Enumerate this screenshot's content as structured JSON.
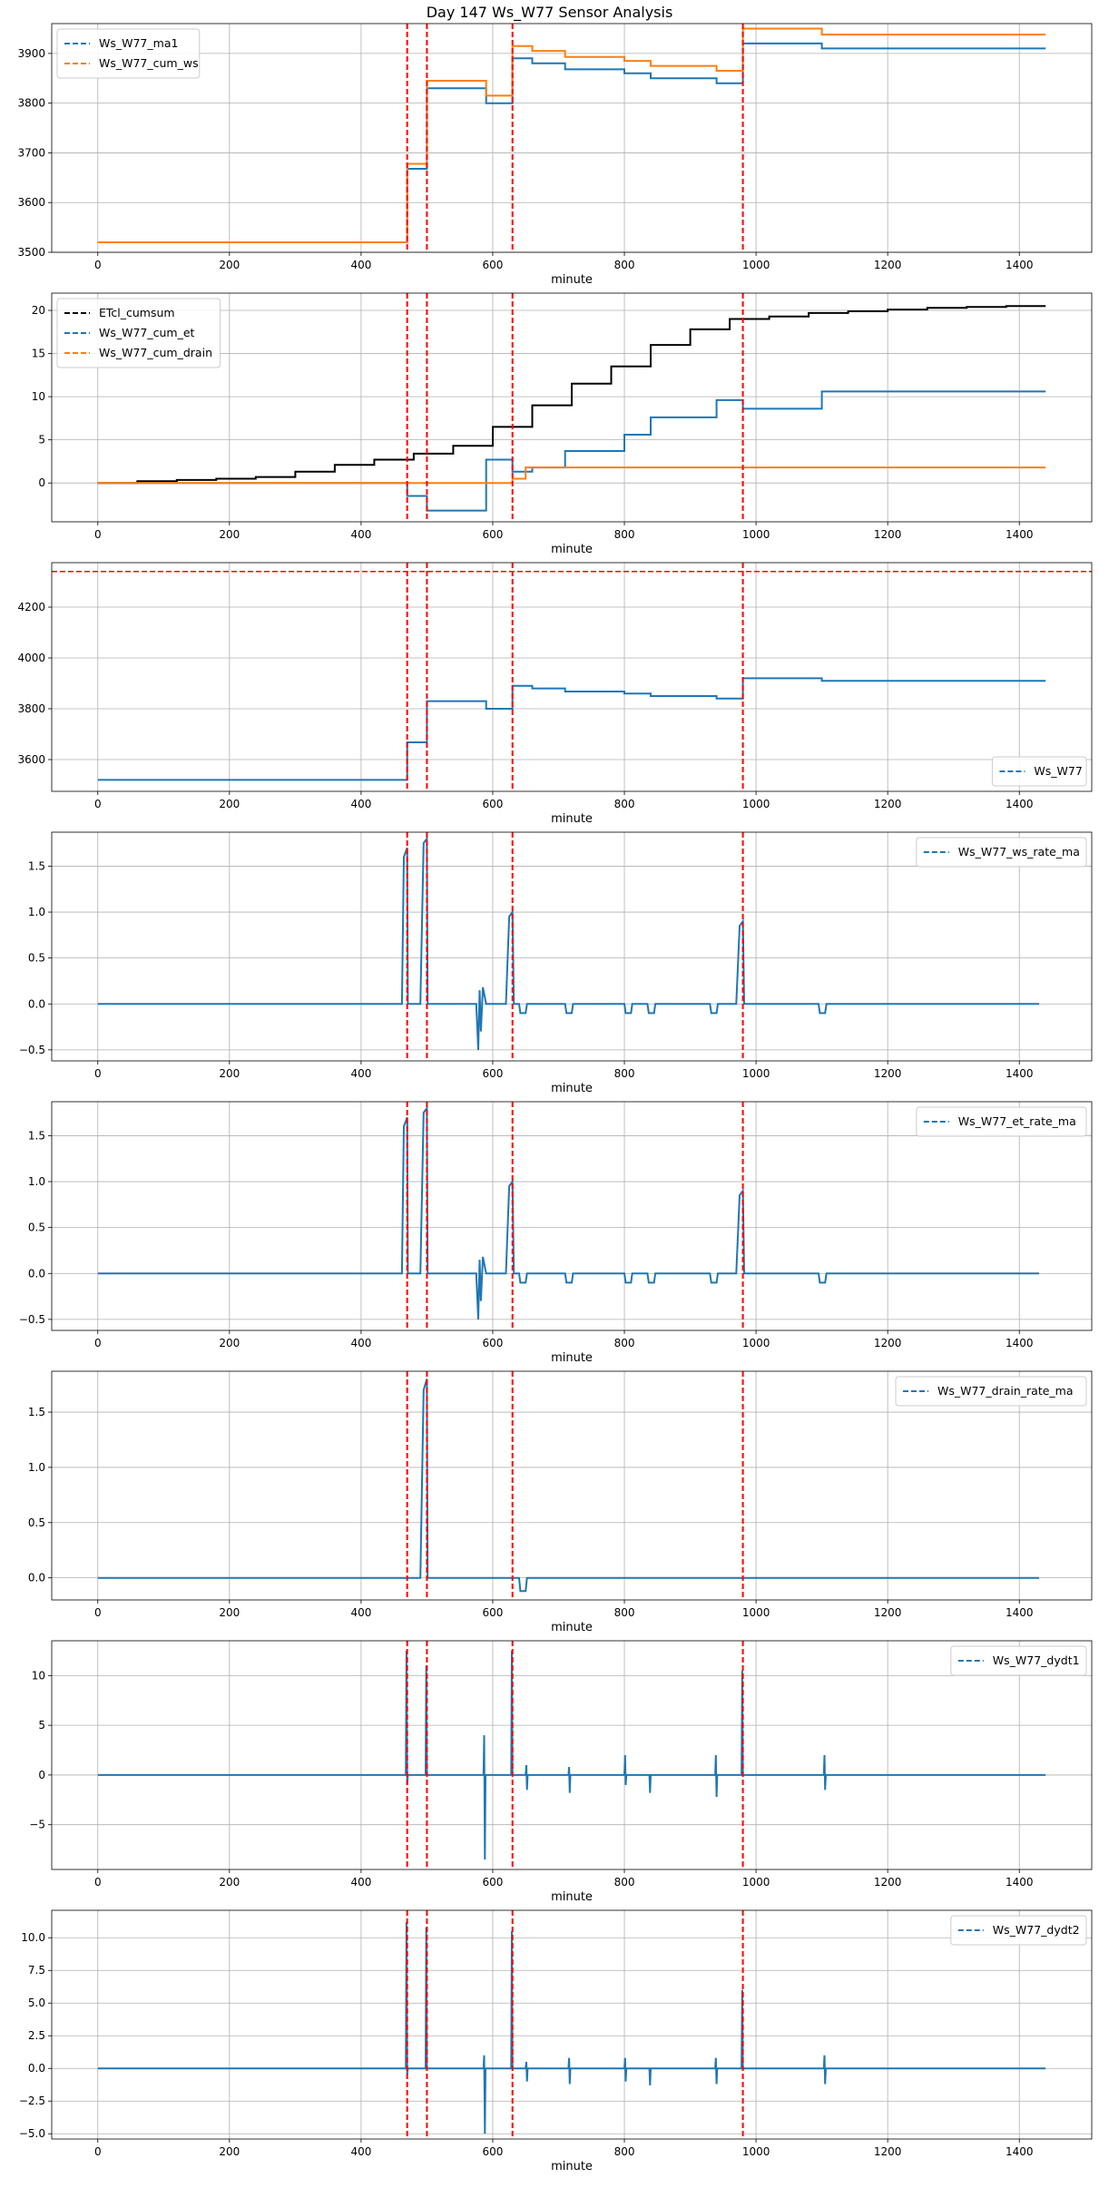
{
  "figure_title": "Day 147 Ws_W77 Sensor Analysis",
  "colors": {
    "blue": "#1f77b4",
    "orange": "#ff7f0e",
    "black": "#000000",
    "red": "#ff0000",
    "grid": "#b0b0b0"
  },
  "chart_data": [
    {
      "type": "line",
      "xlabel": "minute",
      "xlim": [
        -70,
        1510
      ],
      "ylim": [
        3500,
        3960
      ],
      "xticks": [
        0,
        200,
        400,
        600,
        800,
        1000,
        1200,
        1400
      ],
      "yticks": [
        3500,
        3600,
        3700,
        3800,
        3900
      ],
      "legend_loc": "upper-left",
      "event_lines": [
        470,
        500,
        630,
        980
      ],
      "event_hline": null,
      "series": [
        {
          "name": "Ws_W77_ma1",
          "color": "blue",
          "x": [
            0,
            470,
            470,
            500,
            500,
            590,
            590,
            630,
            630,
            660,
            660,
            710,
            710,
            800,
            800,
            840,
            840,
            940,
            940,
            980,
            980,
            1100,
            1100,
            1440
          ],
          "y": [
            3520,
            3520,
            3668,
            3668,
            3830,
            3830,
            3800,
            3800,
            3890,
            3890,
            3880,
            3880,
            3868,
            3868,
            3860,
            3860,
            3850,
            3850,
            3840,
            3840,
            3920,
            3920,
            3910,
            3910
          ]
        },
        {
          "name": "Ws_W77_cum_ws",
          "color": "orange",
          "x": [
            0,
            470,
            470,
            500,
            500,
            590,
            590,
            630,
            630,
            660,
            660,
            710,
            710,
            800,
            800,
            840,
            840,
            940,
            940,
            980,
            980,
            1100,
            1100,
            1440
          ],
          "y": [
            3520,
            3520,
            3678,
            3678,
            3845,
            3845,
            3815,
            3815,
            3915,
            3915,
            3905,
            3905,
            3893,
            3893,
            3885,
            3885,
            3875,
            3875,
            3865,
            3865,
            3950,
            3950,
            3938,
            3938
          ]
        }
      ]
    },
    {
      "type": "line",
      "xlabel": "minute",
      "xlim": [
        -70,
        1510
      ],
      "ylim": [
        -4.5,
        22
      ],
      "xticks": [
        0,
        200,
        400,
        600,
        800,
        1000,
        1200,
        1400
      ],
      "yticks": [
        0,
        5,
        10,
        15,
        20
      ],
      "legend_loc": "upper-left",
      "event_lines": [
        470,
        500,
        630,
        980
      ],
      "event_hline": null,
      "series": [
        {
          "name": "ETcl_cumsum",
          "color": "black",
          "x": [
            0,
            60,
            60,
            120,
            120,
            180,
            180,
            240,
            240,
            300,
            300,
            360,
            360,
            420,
            420,
            480,
            480,
            540,
            540,
            600,
            600,
            660,
            660,
            720,
            720,
            780,
            780,
            840,
            840,
            900,
            900,
            960,
            960,
            1020,
            1020,
            1080,
            1080,
            1140,
            1140,
            1200,
            1200,
            1260,
            1260,
            1320,
            1320,
            1380,
            1380,
            1440
          ],
          "y": [
            0,
            0,
            0.2,
            0.2,
            0.35,
            0.35,
            0.5,
            0.5,
            0.7,
            0.7,
            1.3,
            1.3,
            2.1,
            2.1,
            2.7,
            2.7,
            3.4,
            3.4,
            4.3,
            4.3,
            6.5,
            6.5,
            9.0,
            9.0,
            11.5,
            11.5,
            13.5,
            13.5,
            16.0,
            16.0,
            17.8,
            17.8,
            19.0,
            19.0,
            19.3,
            19.3,
            19.7,
            19.7,
            19.9,
            19.9,
            20.1,
            20.1,
            20.3,
            20.3,
            20.4,
            20.4,
            20.5,
            20.5
          ]
        },
        {
          "name": "Ws_W77_cum_et",
          "color": "blue",
          "x": [
            0,
            470,
            470,
            500,
            500,
            590,
            590,
            630,
            630,
            660,
            660,
            710,
            710,
            800,
            800,
            840,
            840,
            940,
            940,
            980,
            980,
            1100,
            1100,
            1440
          ],
          "y": [
            0,
            0,
            -1.5,
            -1.5,
            -3.2,
            -3.2,
            2.7,
            2.7,
            1.3,
            1.3,
            1.8,
            1.8,
            3.7,
            3.7,
            5.6,
            5.6,
            7.6,
            7.6,
            9.6,
            9.6,
            8.6,
            8.6,
            10.6,
            10.6
          ]
        },
        {
          "name": "Ws_W77_cum_drain",
          "color": "orange",
          "x": [
            0,
            630,
            630,
            650,
            650,
            1440
          ],
          "y": [
            0,
            0,
            0.5,
            0.5,
            1.8,
            1.8
          ]
        }
      ]
    },
    {
      "type": "line",
      "xlabel": "minute",
      "xlim": [
        -70,
        1510
      ],
      "ylim": [
        3475,
        4375
      ],
      "xticks": [
        0,
        200,
        400,
        600,
        800,
        1000,
        1200,
        1400
      ],
      "yticks": [
        3600,
        3800,
        4000,
        4200
      ],
      "legend_loc": "lower-right",
      "event_lines": [
        470,
        500,
        630,
        980
      ],
      "event_hline": 4340,
      "series": [
        {
          "name": "Ws_W77",
          "color": "blue",
          "x": [
            0,
            470,
            470,
            500,
            500,
            590,
            590,
            630,
            630,
            660,
            660,
            710,
            710,
            800,
            800,
            840,
            840,
            940,
            940,
            980,
            980,
            1100,
            1100,
            1440
          ],
          "y": [
            3520,
            3520,
            3668,
            3668,
            3830,
            3830,
            3800,
            3800,
            3890,
            3890,
            3880,
            3880,
            3868,
            3868,
            3860,
            3860,
            3850,
            3850,
            3840,
            3840,
            3920,
            3920,
            3910,
            3910
          ]
        }
      ]
    },
    {
      "type": "line",
      "xlabel": "minute",
      "xlim": [
        -70,
        1510
      ],
      "ylim": [
        -0.62,
        1.87
      ],
      "xticks": [
        0,
        200,
        400,
        600,
        800,
        1000,
        1200,
        1400
      ],
      "yticks": [
        -0.5,
        0.0,
        0.5,
        1.0,
        1.5
      ],
      "legend_loc": "upper-right",
      "event_lines": [
        470,
        500,
        630,
        980
      ],
      "event_hline": null,
      "series": [
        {
          "name": "Ws_W77_ws_rate_ma",
          "color": "blue",
          "x": [
            0,
            462,
            465,
            470,
            471,
            490,
            495,
            500,
            501,
            575,
            578,
            580,
            582,
            585,
            590,
            620,
            625,
            630,
            632,
            640,
            642,
            650,
            652,
            710,
            712,
            720,
            722,
            800,
            802,
            810,
            812,
            835,
            837,
            845,
            847,
            930,
            932,
            940,
            942,
            970,
            975,
            980,
            982,
            1095,
            1097,
            1105,
            1107,
            1430
          ],
          "y": [
            0,
            0,
            1.6,
            1.7,
            0,
            0,
            1.75,
            1.8,
            0,
            0,
            -0.5,
            0.15,
            -0.3,
            0.18,
            0,
            0,
            0.95,
            1.0,
            0,
            0,
            -0.1,
            -0.1,
            0,
            0,
            -0.1,
            -0.1,
            0,
            0,
            -0.1,
            -0.1,
            0,
            0,
            -0.1,
            -0.1,
            0,
            0,
            -0.1,
            -0.1,
            0,
            0,
            0.85,
            0.9,
            0,
            0,
            -0.1,
            -0.1,
            0,
            0
          ]
        }
      ]
    },
    {
      "type": "line",
      "xlabel": "minute",
      "xlim": [
        -70,
        1510
      ],
      "ylim": [
        -0.62,
        1.87
      ],
      "xticks": [
        0,
        200,
        400,
        600,
        800,
        1000,
        1200,
        1400
      ],
      "yticks": [
        -0.5,
        0.0,
        0.5,
        1.0,
        1.5
      ],
      "legend_loc": "upper-right",
      "event_lines": [
        470,
        500,
        630,
        980
      ],
      "event_hline": null,
      "series": [
        {
          "name": "Ws_W77_et_rate_ma",
          "color": "blue",
          "x": [
            0,
            462,
            465,
            470,
            471,
            490,
            495,
            500,
            501,
            575,
            578,
            580,
            582,
            585,
            590,
            620,
            625,
            630,
            632,
            640,
            642,
            650,
            652,
            710,
            712,
            720,
            722,
            800,
            802,
            810,
            812,
            835,
            837,
            845,
            847,
            930,
            932,
            940,
            942,
            970,
            975,
            980,
            982,
            1095,
            1097,
            1105,
            1107,
            1430
          ],
          "y": [
            0,
            0,
            1.6,
            1.7,
            0,
            0,
            1.75,
            1.8,
            0,
            0,
            -0.5,
            0.15,
            -0.3,
            0.18,
            0,
            0,
            0.95,
            1.0,
            0,
            0,
            -0.1,
            -0.1,
            0,
            0,
            -0.1,
            -0.1,
            0,
            0,
            -0.1,
            -0.1,
            0,
            0,
            -0.1,
            -0.1,
            0,
            0,
            -0.1,
            -0.1,
            0,
            0,
            0.85,
            0.9,
            0,
            0,
            -0.1,
            -0.1,
            0,
            0
          ]
        }
      ]
    },
    {
      "type": "line",
      "xlabel": "minute",
      "xlim": [
        -70,
        1510
      ],
      "ylim": [
        -0.2,
        1.87
      ],
      "xticks": [
        0,
        200,
        400,
        600,
        800,
        1000,
        1200,
        1400
      ],
      "yticks": [
        0.0,
        0.5,
        1.0,
        1.5
      ],
      "legend_loc": "upper-right",
      "event_lines": [
        470,
        500,
        630,
        980
      ],
      "event_hline": null,
      "series": [
        {
          "name": "Ws_W77_drain_rate_ma",
          "color": "blue",
          "x": [
            0,
            490,
            495,
            500,
            501,
            640,
            642,
            650,
            652,
            1430
          ],
          "y": [
            0,
            0,
            1.7,
            1.8,
            0,
            0,
            -0.12,
            -0.12,
            0,
            0
          ]
        }
      ]
    },
    {
      "type": "line",
      "xlabel": "minute",
      "xlim": [
        -70,
        1510
      ],
      "ylim": [
        -9.5,
        13.5
      ],
      "xticks": [
        0,
        200,
        400,
        600,
        800,
        1000,
        1200,
        1400
      ],
      "yticks": [
        -5,
        0,
        5,
        10
      ],
      "legend_loc": "upper-right",
      "event_lines": [
        470,
        500,
        630,
        980
      ],
      "event_hline": null,
      "series": [
        {
          "name": "Ws_W77_dydt1",
          "color": "blue",
          "x": [
            0,
            468,
            469,
            470,
            471,
            498,
            499,
            500,
            501,
            586,
            587,
            588,
            589,
            628,
            629,
            630,
            631,
            650,
            651,
            652,
            653,
            715,
            716,
            717,
            718,
            800,
            801,
            802,
            803,
            838,
            839,
            840,
            841,
            938,
            939,
            940,
            941,
            978,
            979,
            980,
            981,
            1103,
            1104,
            1105,
            1106,
            1440
          ],
          "y": [
            0,
            0,
            12.5,
            -1,
            0,
            0,
            11,
            0,
            0,
            0,
            4,
            -8.5,
            0,
            0,
            12.5,
            0,
            0,
            0,
            1,
            -1.5,
            0,
            0,
            0.8,
            -1.8,
            0,
            0,
            2,
            -1,
            0,
            0,
            -1.8,
            0,
            0,
            0,
            2,
            -2.2,
            0,
            0,
            10.5,
            0,
            0,
            0,
            2,
            -1.5,
            0,
            0
          ]
        }
      ]
    },
    {
      "type": "line",
      "xlabel": "minute",
      "xlim": [
        -70,
        1510
      ],
      "ylim": [
        -5.4,
        12.1
      ],
      "xticks": [
        0,
        200,
        400,
        600,
        800,
        1000,
        1200,
        1400
      ],
      "yticks": [
        -5.0,
        -2.5,
        0.0,
        2.5,
        5.0,
        7.5,
        10.0
      ],
      "legend_loc": "upper-right",
      "event_lines": [
        470,
        500,
        630,
        980
      ],
      "event_hline": null,
      "series": [
        {
          "name": "Ws_W77_dydt2",
          "color": "blue",
          "x": [
            0,
            468,
            469,
            470,
            471,
            498,
            499,
            500,
            501,
            586,
            587,
            588,
            589,
            628,
            629,
            630,
            631,
            650,
            651,
            652,
            653,
            715,
            716,
            717,
            718,
            800,
            801,
            802,
            803,
            838,
            839,
            840,
            841,
            938,
            939,
            940,
            941,
            978,
            979,
            980,
            981,
            1103,
            1104,
            1105,
            1106,
            1440
          ],
          "y": [
            0,
            0,
            11.2,
            -0.5,
            0,
            0,
            10.8,
            0,
            0,
            0,
            1,
            -5,
            0,
            0,
            10.5,
            0,
            0,
            0,
            0.5,
            -1,
            0,
            0,
            0.8,
            -1.2,
            0,
            0,
            0.8,
            -1,
            0,
            0,
            -1.3,
            0,
            0,
            0,
            0.8,
            -1.2,
            0,
            0,
            6,
            0,
            0,
            0,
            1,
            -1.2,
            0,
            0
          ]
        }
      ]
    }
  ]
}
